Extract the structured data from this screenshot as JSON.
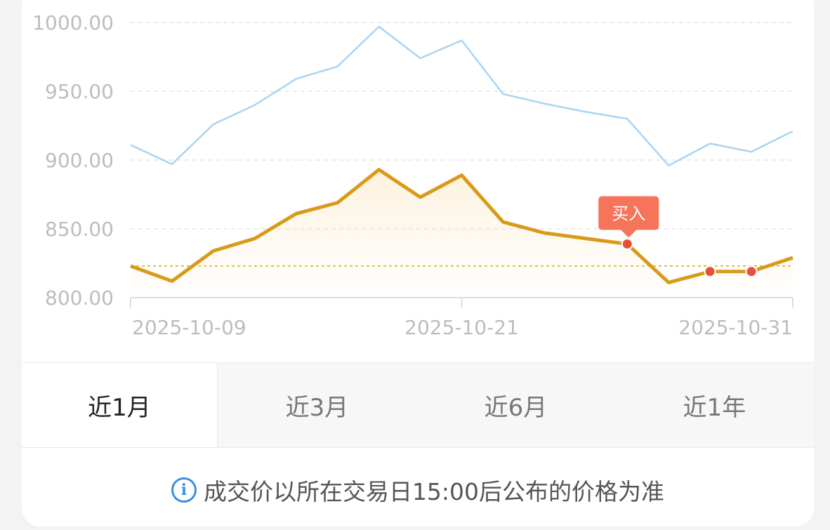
{
  "chart_data": {
    "type": "line",
    "ylim": [
      800,
      1000
    ],
    "y_ticks": [
      "1000.00",
      "950.00",
      "900.00",
      "850.00",
      "800.00"
    ],
    "x_ticks": [
      "2025-10-09",
      "2025-10-21",
      "2025-10-31"
    ],
    "reference_line": 823,
    "grid": true,
    "series": [
      {
        "color": "#a9d5f0",
        "values": [
          911,
          897,
          926,
          940,
          959,
          968,
          997,
          974,
          987,
          948,
          941,
          935,
          930,
          896,
          912,
          906,
          921
        ]
      },
      {
        "color": "#d99a19",
        "values": [
          823,
          812,
          834,
          843,
          861,
          869,
          893,
          873,
          889,
          855,
          847,
          843,
          839,
          811,
          819,
          819,
          829
        ]
      }
    ],
    "markers": [
      {
        "index": 12,
        "label": "买入"
      },
      {
        "index": 14,
        "label": ""
      },
      {
        "index": 15,
        "label": ""
      }
    ],
    "marker_color": "#e8503a",
    "callout_color": "#f5745a"
  },
  "tabs": [
    "近1月",
    "近3月",
    "近6月",
    "近1年"
  ],
  "active_tab": 0,
  "notice": {
    "icon": "info-icon",
    "text": "成交价以所在交易日15:00后公布的价格为准"
  }
}
